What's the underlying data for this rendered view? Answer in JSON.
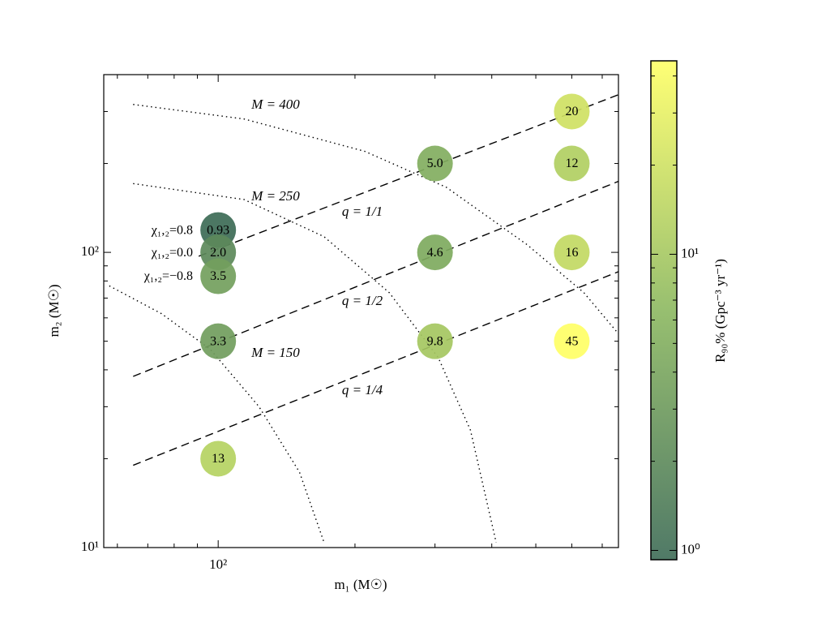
{
  "chart_data": {
    "type": "scatter",
    "xlabel": "m₁ (M☉)",
    "ylabel": "m₂ (M☉)",
    "colorbar_label": "R₉₀% (Gpc⁻³ yr⁻¹)",
    "xlog": true,
    "ylog": true,
    "clog": true,
    "xlim": [
      56,
      760
    ],
    "ylim": [
      10,
      400
    ],
    "xticks": [
      {
        "value": 100,
        "label": "10²"
      }
    ],
    "xminorticks": [
      60,
      70,
      80,
      90,
      200,
      300,
      400,
      500,
      600,
      700
    ],
    "yticks": [
      {
        "value": 10,
        "label": "10¹"
      },
      {
        "value": 100,
        "label": "10²"
      }
    ],
    "yminorticks": [
      20,
      30,
      40,
      50,
      60,
      70,
      80,
      90,
      200,
      300,
      400
    ],
    "clim": [
      0.93,
      45
    ],
    "cticks": [
      {
        "value": 1,
        "label": "10⁰"
      },
      {
        "value": 10,
        "label": "10¹"
      }
    ],
    "cminorticks": [
      2,
      3,
      4,
      5,
      6,
      7,
      8,
      9,
      20,
      30,
      40
    ],
    "colormap": [
      "#3d6b56",
      "#8cb860",
      "#ffff66"
    ],
    "x": [
      100,
      100,
      100,
      100,
      100,
      300,
      300,
      300,
      600,
      600,
      600,
      600
    ],
    "y": [
      119,
      100,
      83,
      50,
      20,
      200,
      100,
      50,
      300,
      200,
      100,
      50
    ],
    "values": [
      0.93,
      2.0,
      3.5,
      3.3,
      13,
      5.0,
      4.6,
      9.8,
      20,
      12,
      16,
      45
    ],
    "value_labels": [
      "0.93",
      "2.0",
      "3.5",
      "3.3",
      "13",
      "5.0",
      "4.6",
      "9.8",
      "20",
      "12",
      "16",
      "45"
    ],
    "spin_labels": [
      "χ₁,₂=0.8",
      "χ₁,₂=0.0",
      "χ₁,₂=−0.8"
    ],
    "mass_curves": [
      {
        "name": "M = 400",
        "x": [
          65,
          114,
          210,
          318,
          479,
          638,
          760
        ],
        "y": [
          317,
          283,
          220,
          166,
          106,
          73,
          53
        ]
      },
      {
        "name": "M = 250",
        "x": [
          65,
          114,
          171,
          238,
          305,
          359,
          409
        ],
        "y": [
          171,
          151,
          113,
          73,
          44,
          25,
          10.4
        ]
      },
      {
        "name": "M = 150",
        "x": [
          57.6,
          75,
          96,
          123,
          151,
          171
        ],
        "y": [
          77,
          62,
          47,
          30,
          18,
          10.4
        ]
      }
    ],
    "ratio_lines": [
      {
        "name": "q = 1/1",
        "x": [
          90.6,
          760
        ],
        "y": [
          97,
          342
        ]
      },
      {
        "name": "q = 1/2",
        "x": [
          65,
          760
        ],
        "y": [
          38,
          174
        ]
      },
      {
        "name": "q = 1/4",
        "x": [
          65,
          760
        ],
        "y": [
          19,
          86
        ]
      }
    ]
  }
}
